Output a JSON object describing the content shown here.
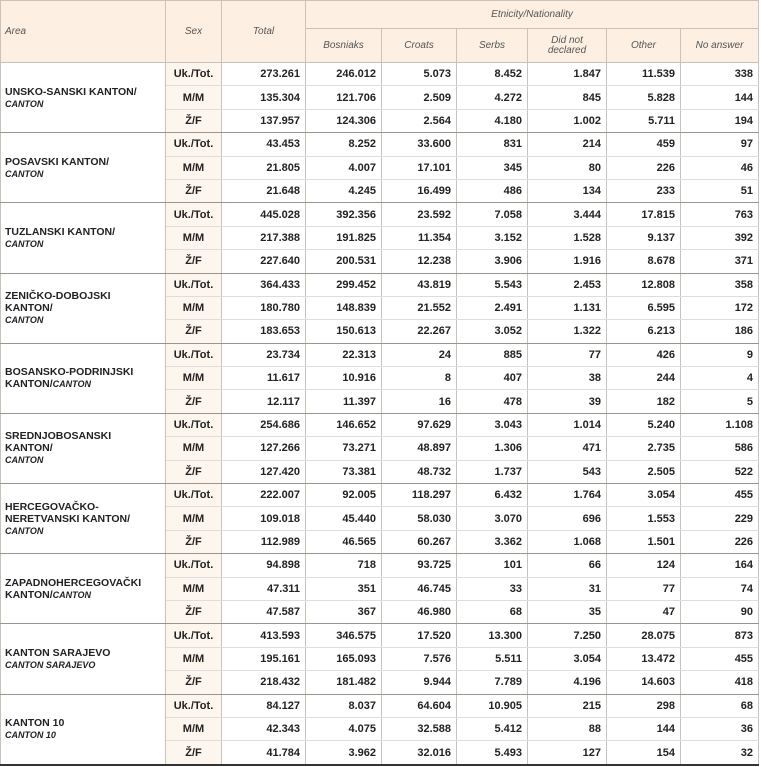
{
  "header": {
    "area": "Area",
    "sex": "Sex",
    "total": "Total",
    "group": "Etnicity/Nationality",
    "columns": [
      "Bosniaks",
      "Croats",
      "Serbs",
      "Did not declared",
      "Other",
      "No answer"
    ]
  },
  "cantons": [
    {
      "name": "UNSKO-SANSKI KANTON/",
      "sub": "CANTON",
      "rows": [
        {
          "sex": "Uk./Tot.",
          "values": [
            "273.261",
            "246.012",
            "5.073",
            "8.452",
            "1.847",
            "11.539",
            "338"
          ]
        },
        {
          "sex": "M/M",
          "values": [
            "135.304",
            "121.706",
            "2.509",
            "4.272",
            "845",
            "5.828",
            "144"
          ]
        },
        {
          "sex": "Ž/F",
          "values": [
            "137.957",
            "124.306",
            "2.564",
            "4.180",
            "1.002",
            "5.711",
            "194"
          ]
        }
      ]
    },
    {
      "name": "POSAVSKI KANTON/",
      "sub": "CANTON",
      "rows": [
        {
          "sex": "Uk./Tot.",
          "values": [
            "43.453",
            "8.252",
            "33.600",
            "831",
            "214",
            "459",
            "97"
          ]
        },
        {
          "sex": "M/M",
          "values": [
            "21.805",
            "4.007",
            "17.101",
            "345",
            "80",
            "226",
            "46"
          ]
        },
        {
          "sex": "Ž/F",
          "values": [
            "21.648",
            "4.245",
            "16.499",
            "486",
            "134",
            "233",
            "51"
          ]
        }
      ]
    },
    {
      "name": "TUZLANSKI KANTON/",
      "sub": "CANTON",
      "rows": [
        {
          "sex": "Uk./Tot.",
          "values": [
            "445.028",
            "392.356",
            "23.592",
            "7.058",
            "3.444",
            "17.815",
            "763"
          ]
        },
        {
          "sex": "M/M",
          "values": [
            "217.388",
            "191.825",
            "11.354",
            "3.152",
            "1.528",
            "9.137",
            "392"
          ]
        },
        {
          "sex": "Ž/F",
          "values": [
            "227.640",
            "200.531",
            "12.238",
            "3.906",
            "1.916",
            "8.678",
            "371"
          ]
        }
      ]
    },
    {
      "name": "ZENIČKO-DOBOJSKI KANTON/",
      "sub": "CANTON",
      "rows": [
        {
          "sex": "Uk./Tot.",
          "values": [
            "364.433",
            "299.452",
            "43.819",
            "5.543",
            "2.453",
            "12.808",
            "358"
          ]
        },
        {
          "sex": "M/M",
          "values": [
            "180.780",
            "148.839",
            "21.552",
            "2.491",
            "1.131",
            "6.595",
            "172"
          ]
        },
        {
          "sex": "Ž/F",
          "values": [
            "183.653",
            "150.613",
            "22.267",
            "3.052",
            "1.322",
            "6.213",
            "186"
          ]
        }
      ]
    },
    {
      "name": "BOSANSKO-PODRINJSKI KANTON/",
      "sub": "CANTON",
      "rows": [
        {
          "sex": "Uk./Tot.",
          "values": [
            "23.734",
            "22.313",
            "24",
            "885",
            "77",
            "426",
            "9"
          ]
        },
        {
          "sex": "M/M",
          "values": [
            "11.617",
            "10.916",
            "8",
            "407",
            "38",
            "244",
            "4"
          ]
        },
        {
          "sex": "Ž/F",
          "values": [
            "12.117",
            "11.397",
            "16",
            "478",
            "39",
            "182",
            "5"
          ]
        }
      ]
    },
    {
      "name": "SREDNJOBOSANSKI KANTON/",
      "sub": "CANTON",
      "rows": [
        {
          "sex": "Uk./Tot.",
          "values": [
            "254.686",
            "146.652",
            "97.629",
            "3.043",
            "1.014",
            "5.240",
            "1.108"
          ]
        },
        {
          "sex": "M/M",
          "values": [
            "127.266",
            "73.271",
            "48.897",
            "1.306",
            "471",
            "2.735",
            "586"
          ]
        },
        {
          "sex": "Ž/F",
          "values": [
            "127.420",
            "73.381",
            "48.732",
            "1.737",
            "543",
            "2.505",
            "522"
          ]
        }
      ]
    },
    {
      "name": "HERCEGOVAČKO-NERETVANSKI KANTON/",
      "sub": "CANTON",
      "rows": [
        {
          "sex": "Uk./Tot.",
          "values": [
            "222.007",
            "92.005",
            "118.297",
            "6.432",
            "1.764",
            "3.054",
            "455"
          ]
        },
        {
          "sex": "M/M",
          "values": [
            "109.018",
            "45.440",
            "58.030",
            "3.070",
            "696",
            "1.553",
            "229"
          ]
        },
        {
          "sex": "Ž/F",
          "values": [
            "112.989",
            "46.565",
            "60.267",
            "3.362",
            "1.068",
            "1.501",
            "226"
          ]
        }
      ]
    },
    {
      "name": "ZAPADNOHERCEGOVAČKI KANTON/",
      "sub": "CANTON",
      "rows": [
        {
          "sex": "Uk./Tot.",
          "values": [
            "94.898",
            "718",
            "93.725",
            "101",
            "66",
            "124",
            "164"
          ]
        },
        {
          "sex": "M/M",
          "values": [
            "47.311",
            "351",
            "46.745",
            "33",
            "31",
            "77",
            "74"
          ]
        },
        {
          "sex": "Ž/F",
          "values": [
            "47.587",
            "367",
            "46.980",
            "68",
            "35",
            "47",
            "90"
          ]
        }
      ]
    },
    {
      "name": "KANTON SARAJEVO",
      "sub": "CANTON SARAJEVO",
      "rows": [
        {
          "sex": "Uk./Tot.",
          "values": [
            "413.593",
            "346.575",
            "17.520",
            "13.300",
            "7.250",
            "28.075",
            "873"
          ]
        },
        {
          "sex": "M/M",
          "values": [
            "195.161",
            "165.093",
            "7.576",
            "5.511",
            "3.054",
            "13.472",
            "455"
          ]
        },
        {
          "sex": "Ž/F",
          "values": [
            "218.432",
            "181.482",
            "9.944",
            "7.789",
            "4.196",
            "14.603",
            "418"
          ]
        }
      ]
    },
    {
      "name": "KANTON 10",
      "sub": "CANTON 10",
      "rows": [
        {
          "sex": "Uk./Tot.",
          "values": [
            "84.127",
            "8.037",
            "64.604",
            "10.905",
            "215",
            "298",
            "68"
          ]
        },
        {
          "sex": "M/M",
          "values": [
            "42.343",
            "4.075",
            "32.588",
            "5.412",
            "88",
            "144",
            "36"
          ]
        },
        {
          "sex": "Ž/F",
          "values": [
            "41.784",
            "3.962",
            "32.016",
            "5.493",
            "127",
            "154",
            "32"
          ]
        }
      ]
    }
  ]
}
